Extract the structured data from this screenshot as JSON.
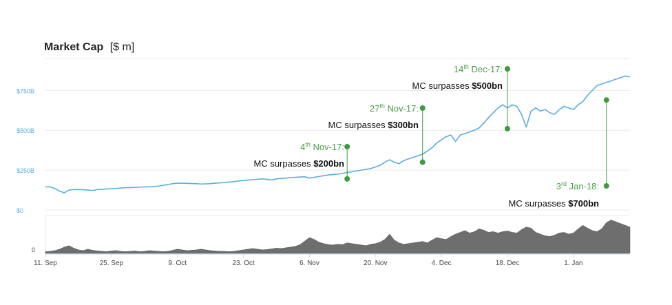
{
  "chart_data": {
    "type": "line",
    "title": "Market Cap",
    "title_unit": "[$ m]",
    "y_ticks": [
      {
        "value": 0,
        "label": "$0"
      },
      {
        "value": 250000,
        "label": "$250B"
      },
      {
        "value": 500000,
        "label": "$500B"
      },
      {
        "value": 750000,
        "label": "$750B"
      }
    ],
    "ylim": [
      0,
      950000
    ],
    "x_ticks": [
      "11. Sep",
      "25. Sep",
      "9. Oct",
      "23. Oct",
      "6. Nov",
      "20. Nov",
      "4. Dec",
      "18. Dec",
      "1. Jan"
    ],
    "x_tick_days": [
      0,
      14,
      28,
      42,
      56,
      70,
      84,
      98,
      112
    ],
    "xlim_days": [
      0,
      124
    ],
    "volume_axis_label": "0",
    "series": [
      {
        "kind": "market_cap",
        "x": [
          0,
          1,
          2,
          3,
          4,
          5,
          6,
          7,
          8,
          9,
          10,
          11,
          12,
          13,
          14,
          15,
          16,
          17,
          18,
          19,
          20,
          21,
          22,
          23,
          24,
          25,
          26,
          27,
          28,
          29,
          30,
          31,
          32,
          33,
          34,
          35,
          36,
          37,
          38,
          39,
          40,
          41,
          42,
          43,
          44,
          45,
          46,
          47,
          48,
          49,
          50,
          51,
          52,
          53,
          54,
          55,
          56,
          57,
          58,
          59,
          60,
          61,
          62,
          63,
          64,
          65,
          66,
          67,
          68,
          69,
          70,
          71,
          72,
          73,
          74,
          75,
          76,
          77,
          78,
          79,
          80,
          81,
          82,
          83,
          84,
          85,
          86,
          87,
          88,
          89,
          90,
          91,
          92,
          93,
          94,
          95,
          96,
          97,
          98,
          99,
          100,
          101,
          102,
          103,
          104,
          105,
          106,
          107,
          108,
          109,
          110,
          111,
          112,
          113,
          114,
          115,
          116,
          117,
          118,
          119,
          120,
          121,
          122,
          123,
          124
        ],
        "values": [
          145000,
          145000,
          135000,
          118000,
          108000,
          125000,
          128000,
          128000,
          127000,
          125000,
          122000,
          128000,
          130000,
          132000,
          133000,
          135000,
          138000,
          140000,
          140000,
          142000,
          143000,
          145000,
          145000,
          147000,
          150000,
          155000,
          160000,
          165000,
          168000,
          168000,
          167000,
          166000,
          165000,
          163000,
          164000,
          165000,
          168000,
          170000,
          172000,
          175000,
          178000,
          182000,
          185000,
          188000,
          190000,
          193000,
          195000,
          192000,
          188000,
          195000,
          198000,
          200000,
          203000,
          205000,
          207000,
          208000,
          200000,
          205000,
          210000,
          215000,
          220000,
          222000,
          225000,
          230000,
          235000,
          240000,
          245000,
          250000,
          255000,
          260000,
          270000,
          280000,
          300000,
          315000,
          300000,
          290000,
          310000,
          320000,
          330000,
          340000,
          350000,
          370000,
          390000,
          420000,
          440000,
          460000,
          470000,
          430000,
          470000,
          480000,
          490000,
          500000,
          515000,
          545000,
          580000,
          610000,
          640000,
          660000,
          640000,
          660000,
          650000,
          600000,
          520000,
          620000,
          640000,
          620000,
          630000,
          610000,
          600000,
          630000,
          650000,
          640000,
          630000,
          660000,
          680000,
          720000,
          750000,
          780000,
          790000,
          800000,
          810000,
          820000,
          830000,
          840000,
          835000
        ]
      },
      {
        "kind": "volume",
        "x": [
          0,
          1,
          2,
          3,
          4,
          5,
          6,
          7,
          8,
          9,
          10,
          11,
          12,
          13,
          14,
          15,
          16,
          17,
          18,
          19,
          20,
          21,
          22,
          23,
          24,
          25,
          26,
          27,
          28,
          29,
          30,
          31,
          32,
          33,
          34,
          35,
          36,
          37,
          38,
          39,
          40,
          41,
          42,
          43,
          44,
          45,
          46,
          47,
          48,
          49,
          50,
          51,
          52,
          53,
          54,
          55,
          56,
          57,
          58,
          59,
          60,
          61,
          62,
          63,
          64,
          65,
          66,
          67,
          68,
          69,
          70,
          71,
          72,
          73,
          74,
          75,
          76,
          77,
          78,
          79,
          80,
          81,
          82,
          83,
          84,
          85,
          86,
          87,
          88,
          89,
          90,
          91,
          92,
          93,
          94,
          95,
          96,
          97,
          98,
          99,
          100,
          101,
          102,
          103,
          104,
          105,
          106,
          107,
          108,
          109,
          110,
          111,
          112,
          113,
          114,
          115,
          116,
          117,
          118,
          119,
          120,
          121,
          122,
          123,
          124
        ],
        "values": [
          5,
          6,
          8,
          12,
          18,
          22,
          15,
          10,
          8,
          12,
          9,
          7,
          6,
          5,
          7,
          8,
          6,
          5,
          6,
          7,
          5,
          6,
          8,
          7,
          6,
          5,
          6,
          9,
          12,
          10,
          8,
          9,
          10,
          12,
          10,
          8,
          7,
          6,
          6,
          5,
          6,
          8,
          10,
          12,
          14,
          12,
          10,
          11,
          13,
          15,
          14,
          16,
          18,
          20,
          25,
          35,
          45,
          40,
          32,
          28,
          25,
          24,
          26,
          25,
          30,
          28,
          26,
          24,
          22,
          26,
          28,
          32,
          40,
          55,
          38,
          30,
          26,
          28,
          30,
          32,
          34,
          30,
          38,
          45,
          42,
          40,
          48,
          55,
          60,
          65,
          58,
          62,
          70,
          66,
          60,
          62,
          58,
          62,
          64,
          60,
          58,
          68,
          75,
          72,
          60,
          55,
          50,
          48,
          52,
          58,
          60,
          55,
          58,
          70,
          80,
          72,
          65,
          62,
          70,
          88,
          95,
          90,
          85,
          80,
          75
        ]
      }
    ],
    "annotations": [
      {
        "date_sup": "th",
        "date_pre": "4",
        "date_post": " Nov-17:",
        "text": "MC surpasses ",
        "amount": "$200bn",
        "x": 64,
        "y": 195000
      },
      {
        "date_sup": "th",
        "date_pre": "27",
        "date_post": " Nov-17:",
        "text": "MC surpasses ",
        "amount": "$300bn",
        "x": 80,
        "y": 300000
      },
      {
        "date_sup": "th",
        "date_pre": "14",
        "date_post": " Dec-17:",
        "text": "MC surpasses ",
        "amount": "$500bn",
        "x": 98,
        "y": 510000
      },
      {
        "date_sup": "rd",
        "date_pre": "3",
        "date_post": " Jan-18:",
        "text": "MC surpasses ",
        "amount": "$700bn",
        "x": 119,
        "y": 690000
      }
    ],
    "colors": {
      "line": "#5aade0",
      "marker": "#3e9b3e",
      "annotation_date": "#4a9e4a",
      "axis_label": "#5aade0",
      "volume": "#555555",
      "grid": "#e9e9e9"
    }
  }
}
